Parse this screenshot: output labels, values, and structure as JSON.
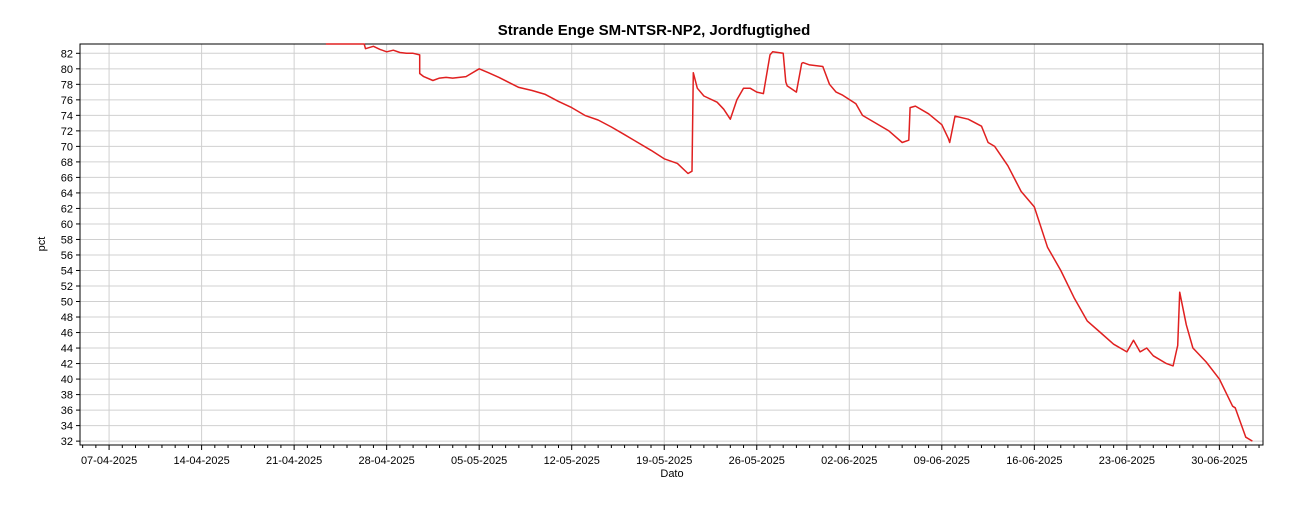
{
  "chart_data": {
    "type": "line",
    "title": "Strande Enge SM-NTSR-NP2, Jordfugtighed",
    "xlabel": "Dato",
    "ylabel": "pct",
    "x_tick_labels": [
      "07-04-2025",
      "14-04-2025",
      "21-04-2025",
      "28-04-2025",
      "05-05-2025",
      "12-05-2025",
      "19-05-2025",
      "26-05-2025",
      "02-06-2025",
      "09-06-2025",
      "16-06-2025",
      "23-06-2025",
      "30-06-2025"
    ],
    "x_tick_days": [
      0,
      7,
      14,
      21,
      28,
      35,
      42,
      49,
      56,
      63,
      70,
      77,
      84
    ],
    "xlim_days": [
      -2.2,
      87.3
    ],
    "ylim": [
      31.5,
      83.2
    ],
    "y_ticks": [
      32,
      34,
      36,
      38,
      40,
      42,
      44,
      46,
      48,
      50,
      52,
      54,
      56,
      58,
      60,
      62,
      64,
      66,
      68,
      70,
      72,
      74,
      76,
      78,
      80,
      82
    ],
    "grid": true,
    "line_color": "#e02020",
    "series": [
      {
        "x_days": [
          16.4,
          19.3,
          19.4,
          20.0,
          20.5,
          21.0,
          21.5,
          22.0,
          22.5,
          23.0,
          23.5,
          23.5,
          23.8,
          24.5,
          25.0,
          25.5,
          26.0,
          27.0,
          28.0,
          28.7,
          29.5,
          30.3,
          31.0,
          32.0,
          33.0,
          34.0,
          35.0,
          36.0,
          37.0,
          38.0,
          39.0,
          40.0,
          41.0,
          42.0,
          43.0,
          43.8,
          44.1,
          44.2,
          44.5,
          45.0,
          46.0,
          46.5,
          47.0,
          47.5,
          48.0,
          48.5,
          49.0,
          49.5,
          50.0,
          50.2,
          51.0,
          51.2,
          51.3,
          52.0,
          52.4,
          52.5,
          53.0,
          54.0,
          54.5,
          55.0,
          55.5,
          56.5,
          57.0,
          58.0,
          59.0,
          60.0,
          60.5,
          60.6,
          61.0,
          62.0,
          63.0,
          63.5,
          63.6,
          64.0,
          65.0,
          66.0,
          66.5,
          67.0,
          68.0,
          69.0,
          70.0,
          71.0,
          72.0,
          73.0,
          74.0,
          75.0,
          76.0,
          77.0,
          77.5,
          78.0,
          78.5,
          79.0,
          80.0,
          80.5,
          80.8,
          80.85,
          81.0,
          81.5,
          82.0,
          83.0,
          84.0,
          85.0,
          85.2,
          86.0,
          86.5
        ],
        "values": [
          83.2,
          83.2,
          82.6,
          82.9,
          82.5,
          82.2,
          82.4,
          82.1,
          82.0,
          82.0,
          81.8,
          79.4,
          79.0,
          78.5,
          78.8,
          78.9,
          78.8,
          79.0,
          80.0,
          79.5,
          78.9,
          78.2,
          77.6,
          77.2,
          76.7,
          75.8,
          75.0,
          74.0,
          73.4,
          72.5,
          71.5,
          70.5,
          69.5,
          68.4,
          67.8,
          66.5,
          66.8,
          79.5,
          77.5,
          76.5,
          75.7,
          74.8,
          73.5,
          76.0,
          77.5,
          77.5,
          77.0,
          76.8,
          81.8,
          82.2,
          82.0,
          78.3,
          77.8,
          77.0,
          80.7,
          80.8,
          80.5,
          80.3,
          78.0,
          77.0,
          76.6,
          75.5,
          74.0,
          73.0,
          72.0,
          70.5,
          70.8,
          75.0,
          75.2,
          74.2,
          72.8,
          71.0,
          70.5,
          73.9,
          73.5,
          72.6,
          70.5,
          70.0,
          67.5,
          64.2,
          62.2,
          57.0,
          54.0,
          50.5,
          47.5,
          46.0,
          44.5,
          43.5,
          45.0,
          43.5,
          44.0,
          43.0,
          42.0,
          41.7,
          44.0,
          44.3,
          51.2,
          47.0,
          44.0,
          42.2,
          40.0,
          36.5,
          36.3,
          32.5,
          32.0
        ]
      }
    ]
  }
}
